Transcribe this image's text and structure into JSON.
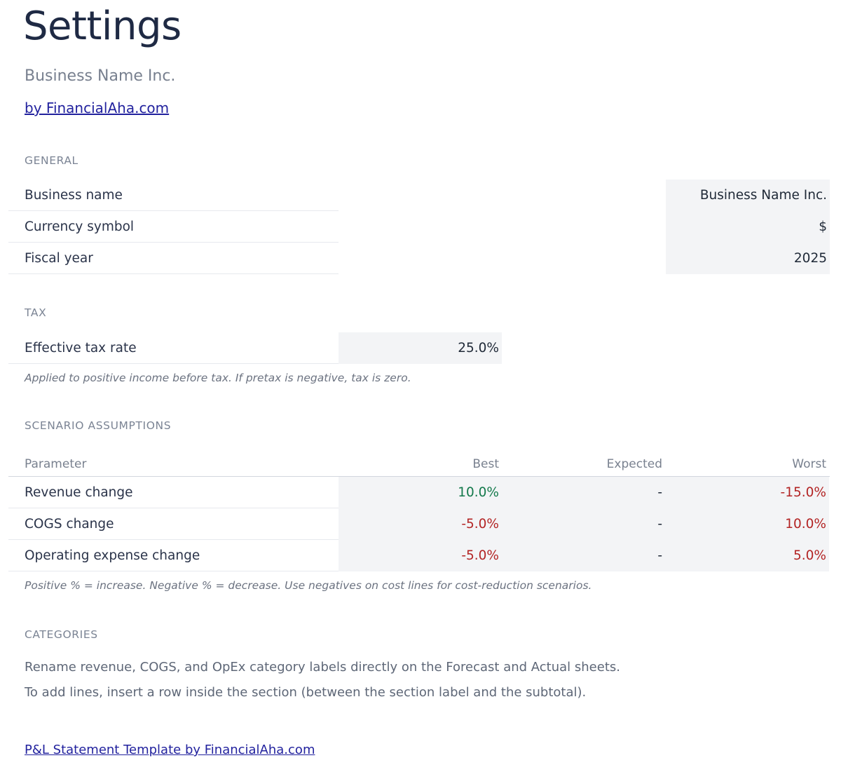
{
  "page": {
    "title": "Settings",
    "subtitle": "Business Name Inc.",
    "byline_link": "by FinancialAha.com"
  },
  "general": {
    "heading": "GENERAL",
    "rows": [
      {
        "label": "Business name",
        "value": "Business Name Inc."
      },
      {
        "label": "Currency symbol",
        "value": "$"
      },
      {
        "label": "Fiscal year",
        "value": "2025"
      }
    ]
  },
  "tax": {
    "heading": "TAX",
    "row": {
      "label": "Effective tax rate",
      "value": "25.0%"
    },
    "note": "Applied to positive income before tax. If pretax is negative, tax is zero."
  },
  "scenario": {
    "heading": "SCENARIO ASSUMPTIONS",
    "columns": {
      "parameter": "Parameter",
      "best": "Best",
      "expected": "Expected",
      "worst": "Worst"
    },
    "rows": [
      {
        "label": "Revenue change",
        "best": "10.0%",
        "best_tone": "positive",
        "expected": "-",
        "expected_tone": "neutral",
        "worst": "-15.0%",
        "worst_tone": "negative"
      },
      {
        "label": "COGS change",
        "best": "-5.0%",
        "best_tone": "negative",
        "expected": "-",
        "expected_tone": "neutral",
        "worst": "10.0%",
        "worst_tone": "negative"
      },
      {
        "label": "Operating expense change",
        "best": "-5.0%",
        "best_tone": "negative",
        "expected": "-",
        "expected_tone": "neutral",
        "worst": "5.0%",
        "worst_tone": "negative"
      }
    ],
    "note": "Positive % = increase. Negative % = decrease. Use negatives on cost lines for cost-reduction scenarios."
  },
  "categories": {
    "heading": "CATEGORIES",
    "lines": [
      "Rename revenue, COGS, and OpEx category labels directly on the Forecast and Actual sheets.",
      "To add lines, insert a row inside the section (between the section label and the subtotal)."
    ]
  },
  "footer": {
    "link": "P&L Statement Template by FinancialAha.com"
  },
  "colors": {
    "positive": "#13794b",
    "negative": "#b32424",
    "link": "#22229e",
    "cell_background": "#f3f4f6"
  }
}
